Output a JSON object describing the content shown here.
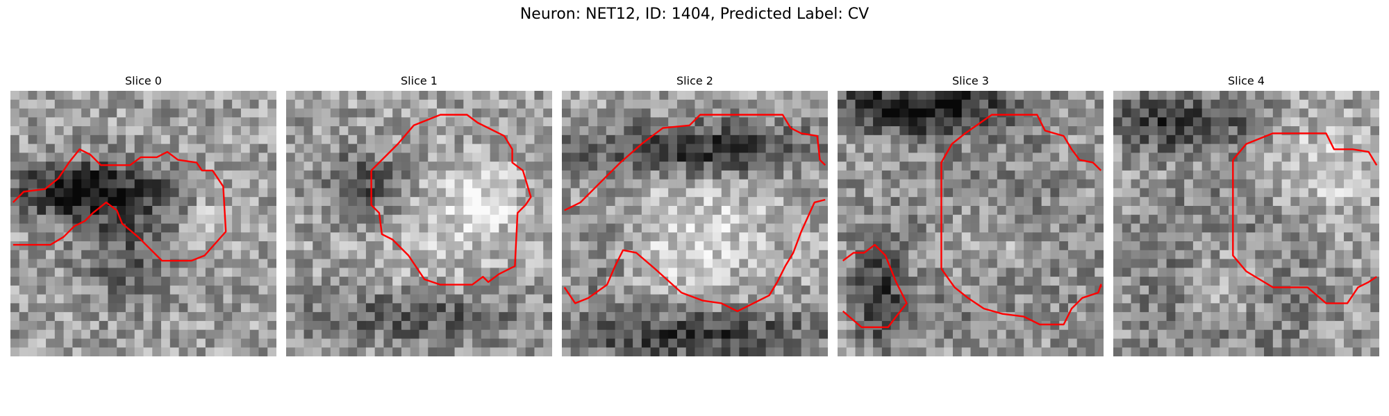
{
  "figure": {
    "title": "Neuron: NET12, ID: 1404, Predicted Label: CV"
  },
  "panels": [
    {
      "title": "Slice 0"
    },
    {
      "title": "Slice 1"
    },
    {
      "title": "Slice 2"
    },
    {
      "title": "Slice 3"
    },
    {
      "title": "Slice 4"
    }
  ],
  "colors": {
    "contour": "#ff0000",
    "colormap": "gray"
  }
}
